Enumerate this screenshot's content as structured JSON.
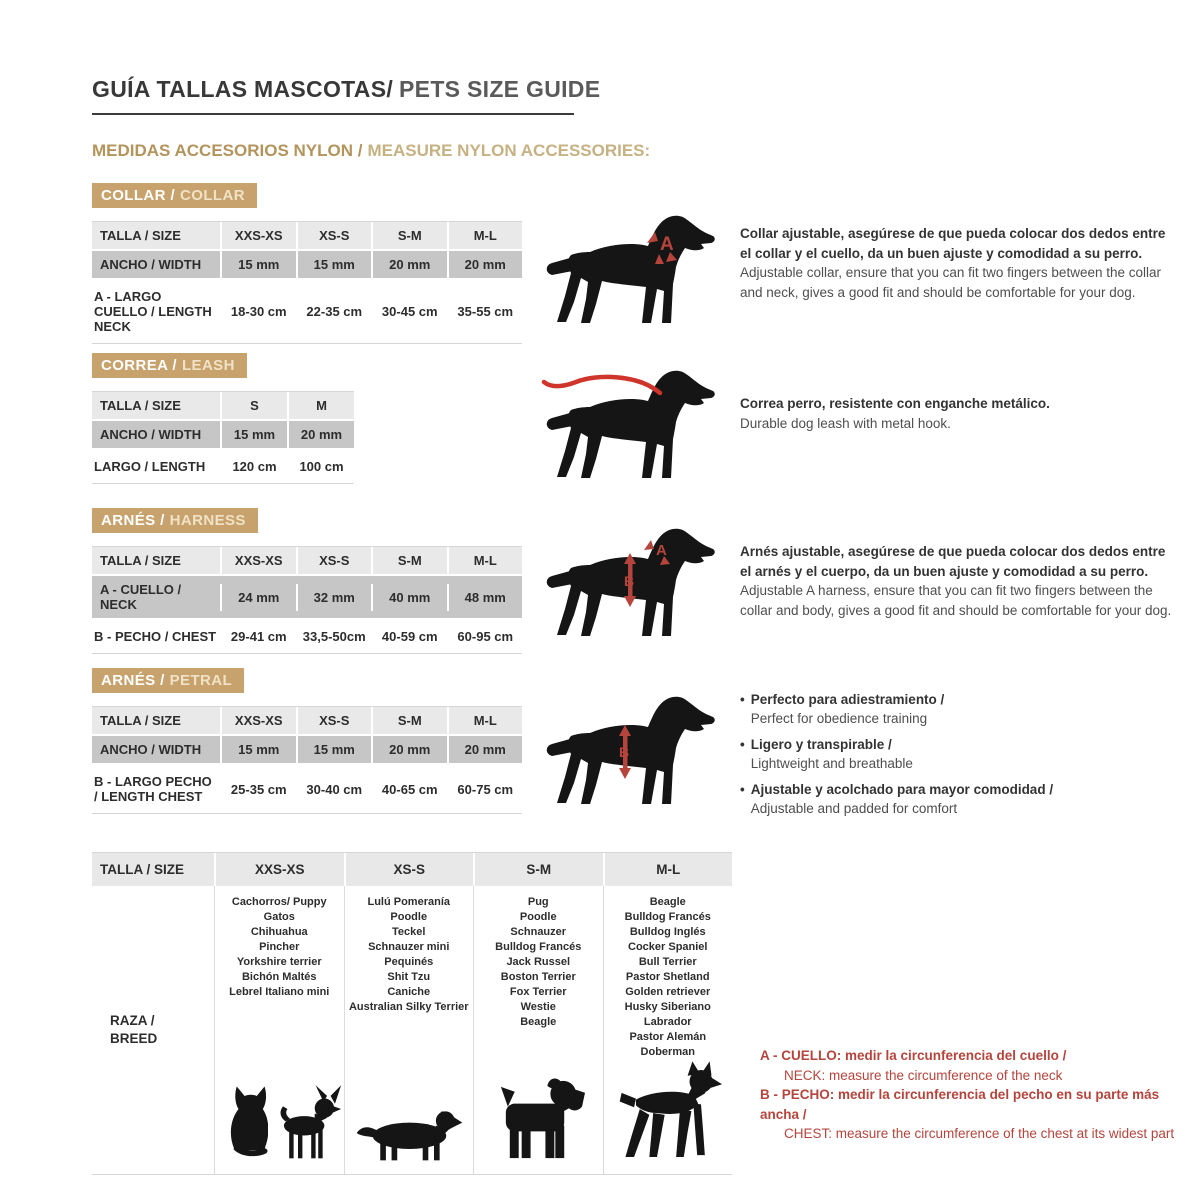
{
  "page": {
    "title_es": "GUÍA TALLAS MASCOTAS/",
    "title_en": "PETS SIZE GUIDE",
    "subtitle_es": "MEDIDAS ACCESORIOS NYLON /",
    "subtitle_en": "MEASURE NYLON ACCESSORIES:"
  },
  "colors": {
    "accent_tan": "#c7a26c",
    "accent_red": "#b5453c",
    "row_gray": "#c6c6c6",
    "header_gray": "#e9e9e9"
  },
  "sections": {
    "collar": {
      "band_es": "COLLAR /",
      "band_en": "COLLAR",
      "table": {
        "header": [
          "TALLA / SIZE",
          "XXS-XS",
          "XS-S",
          "S-M",
          "M-L"
        ],
        "rows": [
          {
            "label": "ANCHO / WIDTH",
            "values": [
              "15 mm",
              "15 mm",
              "20 mm",
              "20 mm"
            ],
            "shade": "dark"
          },
          {
            "label": "A - LARGO CUELLO / LENGTH NECK",
            "values": [
              "18-30 cm",
              "22-35 cm",
              "30-45 cm",
              "35-55 cm"
            ],
            "shade": "white"
          }
        ]
      },
      "desc_es": "Collar ajustable, asegúrese de que pueda colocar dos dedos entre el collar y el cuello, da un buen ajuste y comodidad a su perro.",
      "desc_en": "Adjustable collar, ensure that you can fit two fingers between the collar and neck, gives a good fit and should be comfortable for your dog."
    },
    "correa": {
      "band_es": "CORREA /",
      "band_en": "LEASH",
      "table": {
        "header": [
          "TALLA / SIZE",
          "S",
          "M"
        ],
        "rows": [
          {
            "label": "ANCHO / WIDTH",
            "values": [
              "15 mm",
              "20 mm"
            ],
            "shade": "dark"
          },
          {
            "label": "LARGO / LENGTH",
            "values": [
              "120 cm",
              "100 cm"
            ],
            "shade": "white"
          }
        ]
      },
      "desc_es": "Correa perro, resistente con enganche metálico.",
      "desc_en": "Durable dog leash with metal hook."
    },
    "harness": {
      "band_es": "ARNÉS /",
      "band_en": "HARNESS",
      "table": {
        "header": [
          "TALLA / SIZE",
          "XXS-XS",
          "XS-S",
          "S-M",
          "M-L"
        ],
        "rows": [
          {
            "label": "A - CUELLO / NECK",
            "values": [
              "24 mm",
              "32 mm",
              "40 mm",
              "48 mm"
            ],
            "shade": "dark"
          },
          {
            "label": "B - PECHO / CHEST",
            "values": [
              "29-41 cm",
              "33,5-50cm",
              "40-59 cm",
              "60-95 cm"
            ],
            "shade": "white"
          }
        ]
      },
      "desc_es": "Arnés ajustable, asegúrese de que pueda colocar dos dedos entre el arnés y el cuerpo, da un buen ajuste y comodidad a su perro.",
      "desc_en": "Adjustable A harness, ensure that you can fit two fingers between the collar and body, gives a good fit and should be comfortable for your dog."
    },
    "petral": {
      "band_es": "ARNÉS /",
      "band_en": "PETRAL",
      "table": {
        "header": [
          "TALLA / SIZE",
          "XXS-XS",
          "XS-S",
          "S-M",
          "M-L"
        ],
        "rows": [
          {
            "label": "ANCHO / WIDTH",
            "values": [
              "15 mm",
              "15 mm",
              "20 mm",
              "20 mm"
            ],
            "shade": "dark"
          },
          {
            "label": "B - LARGO PECHO / LENGTH CHEST",
            "values": [
              "25-35 cm",
              "30-40 cm",
              "40-65 cm",
              "60-75 cm"
            ],
            "shade": "white"
          }
        ]
      },
      "bullets": [
        {
          "es": "Perfecto para adiestramiento /",
          "en": "Perfect for obedience training"
        },
        {
          "es": "Ligero y transpirable /",
          "en": "Lightweight and breathable"
        },
        {
          "es": "Ajustable y acolchado para mayor comodidad /",
          "en": "Adjustable and padded for comfort"
        }
      ]
    }
  },
  "breeds": {
    "header": [
      "TALLA /  SIZE",
      "XXS-XS",
      "XS-S",
      "S-M",
      "M-L"
    ],
    "row_label": "RAZA /\nBREED",
    "columns": [
      {
        "size": "XXS-XS",
        "list": [
          "Cachorros/ Puppy",
          "Gatos",
          "Chihuahua",
          "Pincher",
          "Yorkshire terrier",
          "Bichón Maltés",
          "Lebrel Italiano mini"
        ]
      },
      {
        "size": "XS-S",
        "list": [
          "Lulú Pomeranía",
          "Poodle",
          "Teckel",
          "Schnauzer mini",
          "Pequinés",
          "Shit Tzu",
          "Caniche",
          "Australian Silky Terrier"
        ]
      },
      {
        "size": "S-M",
        "list": [
          "Pug",
          "Poodle",
          "Schnauzer",
          "Bulldog Francés",
          "Jack Russel",
          "Boston Terrier",
          "Fox Terrier",
          "Westie",
          "Beagle"
        ]
      },
      {
        "size": "M-L",
        "list": [
          "Beagle",
          "Bulldog Francés",
          "Bulldog Inglés",
          "Cocker Spaniel",
          "Bull Terrier",
          "Pastor Shetland",
          "Golden retriever",
          "Husky Siberiano",
          "Labrador",
          "Pastor Alemán",
          "Doberman"
        ]
      }
    ]
  },
  "footnotes": [
    {
      "bold": "A - CUELLO: medir la circunferencia del cuello /",
      "normal": "NECK: measure the circumference of the neck"
    },
    {
      "bold": "B - PECHO: medir la circunferencia del pecho en su parte más ancha /",
      "normal": "CHEST: measure the circumference of the chest at its widest part"
    }
  ]
}
